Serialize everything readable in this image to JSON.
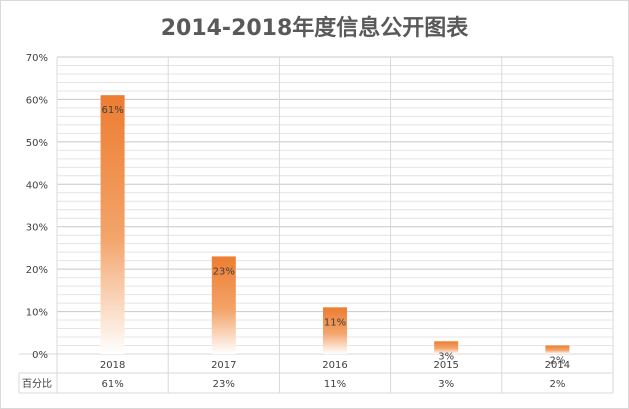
{
  "chart_data": {
    "type": "bar",
    "title": "2014-2018年度信息公开图表",
    "categories": [
      "2018",
      "2017",
      "2016",
      "2015",
      "2014"
    ],
    "series": [
      {
        "name": "百分比",
        "values": [
          61,
          23,
          11,
          3,
          2
        ]
      }
    ],
    "data_labels": [
      "61%",
      "23%",
      "11%",
      "3%",
      "2%"
    ],
    "table_values": [
      "61%",
      "23%",
      "11%",
      "3%",
      "2%"
    ],
    "y_ticks": [
      "0%",
      "10%",
      "20%",
      "30%",
      "40%",
      "50%",
      "60%",
      "70%"
    ],
    "ylim": [
      0,
      70
    ],
    "grid": true,
    "legend": "data table below x-axis",
    "colors": {
      "bar": "#ed7d31",
      "bar_fade": "#ffffff",
      "grid": "#d9d9d9",
      "text": "#404040"
    }
  }
}
